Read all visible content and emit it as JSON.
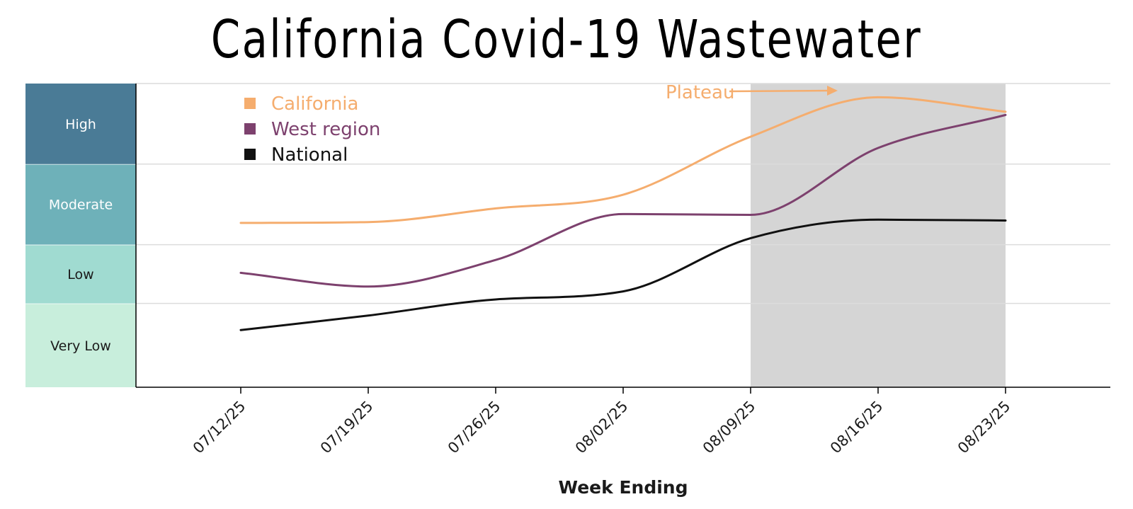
{
  "chart_data": {
    "type": "line",
    "title": "California Covid-19 Wastewater",
    "xlabel": "Week Ending",
    "ylabel": "",
    "categories": [
      "07/12/25",
      "07/19/25",
      "07/26/25",
      "08/02/25",
      "08/09/25",
      "08/16/25",
      "08/23/25"
    ],
    "levels": [
      {
        "name": "Very Low",
        "color": "#c8eedc",
        "text_color": "#1a1a1a",
        "from": 0,
        "to": 1.04
      },
      {
        "name": "Low",
        "color": "#a0dbd1",
        "text_color": "#1a1a1a",
        "from": 1.04,
        "to": 1.77
      },
      {
        "name": "Moderate",
        "color": "#6eb1b9",
        "text_color": "#ffffff",
        "from": 1.77,
        "to": 2.77
      },
      {
        "name": "High",
        "color": "#4a7b96",
        "text_color": "#ffffff",
        "from": 2.77,
        "to": 3.77
      }
    ],
    "ylim": [
      0,
      3.77
    ],
    "series": [
      {
        "name": "California",
        "color": "#f5ad6e",
        "values": [
          2.04,
          2.05,
          2.22,
          2.39,
          3.11,
          3.6,
          3.42
        ]
      },
      {
        "name": "West region",
        "color": "#7d416e",
        "values": [
          1.42,
          1.25,
          1.58,
          2.15,
          2.14,
          2.97,
          3.38
        ]
      },
      {
        "name": "National",
        "color": "#111111",
        "values": [
          0.71,
          0.89,
          1.09,
          1.19,
          1.85,
          2.08,
          2.07
        ]
      }
    ],
    "shaded_region": {
      "from": "08/09/25",
      "to": "08/23/25",
      "color": "#d5d5d5"
    },
    "annotation": {
      "text": "Plateau",
      "color": "#f5ad6e"
    },
    "grid": true,
    "legend_position": "top-left"
  }
}
